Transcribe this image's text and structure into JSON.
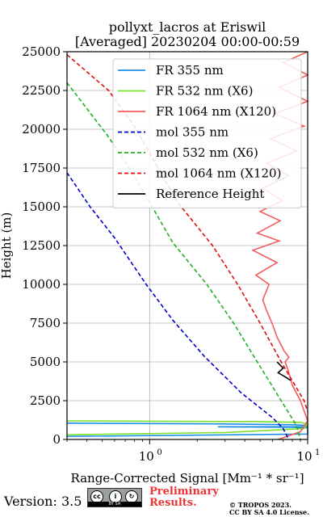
{
  "chart_data": {
    "type": "line",
    "title_line1": "pollyxt_lacros at Eriswil",
    "title_line2": "[Averaged] 20230204 00:00-00:59",
    "xlabel": "Range-Corrected Signal [Mm⁻¹ * sr⁻¹]",
    "ylabel": "Height (m)",
    "xscale": "log",
    "xlim": [
      0.3,
      10
    ],
    "ylim": [
      0,
      25000
    ],
    "x_ticks": [
      {
        "value": 1,
        "label": "10",
        "exp": "0"
      },
      {
        "value": 10,
        "label": "10",
        "exp": "1"
      }
    ],
    "y_ticks": [
      0,
      2500,
      5000,
      7500,
      10000,
      12500,
      15000,
      17500,
      20000,
      22500,
      25000
    ],
    "grid": true,
    "legend_position": "top-right",
    "series": [
      {
        "name": "FR 355 nm",
        "color": "#1f8fe6",
        "style": "solid",
        "points": [
          [
            0.3,
            1050
          ],
          [
            3,
            1000
          ],
          [
            8,
            950
          ],
          [
            10,
            900
          ],
          [
            10,
            820
          ],
          [
            2.7,
            820
          ],
          [
            8,
            780
          ],
          [
            10,
            750
          ],
          [
            10,
            350
          ],
          [
            0.3,
            200
          ]
        ]
      },
      {
        "name": "FR 532 nm (X6)",
        "color": "#7de02a",
        "style": "solid",
        "points": [
          [
            0.3,
            1200
          ],
          [
            5,
            1150
          ],
          [
            9,
            1100
          ],
          [
            10,
            1000
          ],
          [
            9.5,
            700
          ],
          [
            3,
            450
          ],
          [
            0.3,
            300
          ]
        ]
      },
      {
        "name": "FR 1064 nm (X120)",
        "color": "#f25c5c",
        "style": "solid",
        "points": [
          [
            6.5,
            0
          ],
          [
            9,
            500
          ],
          [
            10,
            1200
          ],
          [
            9,
            2500
          ],
          [
            8,
            3500
          ],
          [
            7.5,
            4500
          ],
          [
            7.2,
            5000
          ],
          [
            7.6,
            5300
          ],
          [
            7.1,
            5700
          ],
          [
            6.4,
            6600
          ],
          [
            6,
            7400
          ],
          [
            5.5,
            8300
          ],
          [
            5.2,
            9000
          ],
          [
            5.7,
            10000
          ],
          [
            4.7,
            10600
          ],
          [
            6.4,
            11400
          ],
          [
            4.5,
            12200
          ],
          [
            6.6,
            12800
          ],
          [
            4.8,
            13300
          ],
          [
            6.7,
            14100
          ],
          [
            5,
            14700
          ],
          [
            6.9,
            15400
          ],
          [
            5.2,
            16200
          ],
          [
            7.6,
            17000
          ],
          [
            5.5,
            17800
          ],
          [
            8.5,
            18600
          ],
          [
            5.8,
            19400
          ],
          [
            9.5,
            20200
          ],
          [
            6.2,
            21000
          ],
          [
            10,
            21800
          ],
          [
            6.6,
            22700
          ],
          [
            10,
            23500
          ],
          [
            7,
            24300
          ],
          [
            10,
            25000
          ]
        ]
      },
      {
        "name": "mol 355 nm",
        "color": "#0000cc",
        "style": "dashed",
        "points": [
          [
            0.3,
            17200
          ],
          [
            0.42,
            15000
          ],
          [
            0.6,
            13000
          ],
          [
            0.95,
            10000
          ],
          [
            1.4,
            7700
          ],
          [
            2.2,
            5400
          ],
          [
            3.8,
            3000
          ],
          [
            6,
            1400
          ],
          [
            7,
            700
          ],
          [
            7.6,
            0
          ]
        ]
      },
      {
        "name": "mol 532 nm (X6)",
        "color": "#22b022",
        "style": "dashed",
        "points": [
          [
            0.3,
            23000
          ],
          [
            0.55,
            19500
          ],
          [
            0.8,
            17000
          ],
          [
            1.4,
            12700
          ],
          [
            2.3,
            10000
          ],
          [
            3.4,
            7500
          ],
          [
            4.8,
            5000
          ],
          [
            6.8,
            2500
          ],
          [
            8.5,
            900
          ],
          [
            9,
            0
          ]
        ]
      },
      {
        "name": "mol 1064 nm (X120)",
        "color": "#dd1111",
        "style": "dashed",
        "points": [
          [
            0.3,
            24800
          ],
          [
            0.55,
            22500
          ],
          [
            0.8,
            20200
          ],
          [
            1.5,
            15300
          ],
          [
            2.5,
            12500
          ],
          [
            3.6,
            10000
          ],
          [
            5,
            7500
          ],
          [
            6.8,
            5000
          ],
          [
            9.5,
            2500
          ],
          [
            10,
            1800
          ]
        ]
      },
      {
        "name": "Reference Height",
        "color": "#000000",
        "style": "solid",
        "points": [
          [
            6.4,
            5000
          ],
          [
            7,
            4600
          ],
          [
            6.5,
            4300
          ],
          [
            7.3,
            4000
          ],
          [
            7.8,
            3800
          ]
        ]
      }
    ]
  },
  "footer": {
    "version": "Version: 3.5",
    "license_badge": "cc-by-sa",
    "license_badge_text": "BY SA",
    "preliminary_line1": "Preliminary",
    "preliminary_line2": "Results.",
    "copyright_line1": "© TROPOS 2023.",
    "copyright_line2": "CC BY SA 4.0 License."
  }
}
